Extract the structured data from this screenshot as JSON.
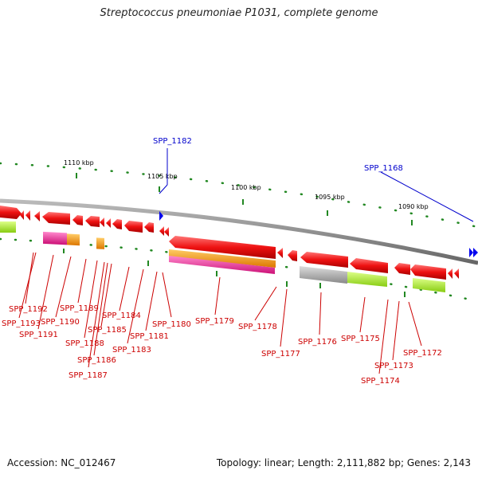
{
  "title": "Streptococcus pneumoniae P1031, complete genome",
  "footer": {
    "accession": "Accession: NC_012467",
    "topology": "Topology: linear; Length: 2,111,882 bp; Genes: 2,143"
  },
  "scale_labels": [
    "1110 kbp",
    "1105 kbp",
    "1100 kbp",
    "1095 kbp",
    "1090 kbp"
  ],
  "callouts": [
    "SPP_1182",
    "SPP_1168"
  ],
  "genes": [
    "SPP_1192",
    "SPP_1193",
    "SPP_1191",
    "SPP_1190",
    "SPP_1189",
    "SPP_1188",
    "SPP_1187",
    "SPP_1186",
    "SPP_1185",
    "SPP_1184",
    "SPP_1183",
    "SPP_1181",
    "SPP_1180",
    "SPP_1179",
    "SPP_1178",
    "SPP_1177",
    "SPP_1176",
    "SPP_1175",
    "SPP_1174",
    "SPP_1173",
    "SPP_1172"
  ],
  "colors": {
    "gene": "#ee1111",
    "label": "#cc0000",
    "callout": "#0000cc",
    "tick": "#228822",
    "backbone": "#808080",
    "orange": "#ff9900",
    "magenta": "#ee3399",
    "lime": "#aaee22",
    "gray": "#aaaaaa"
  }
}
